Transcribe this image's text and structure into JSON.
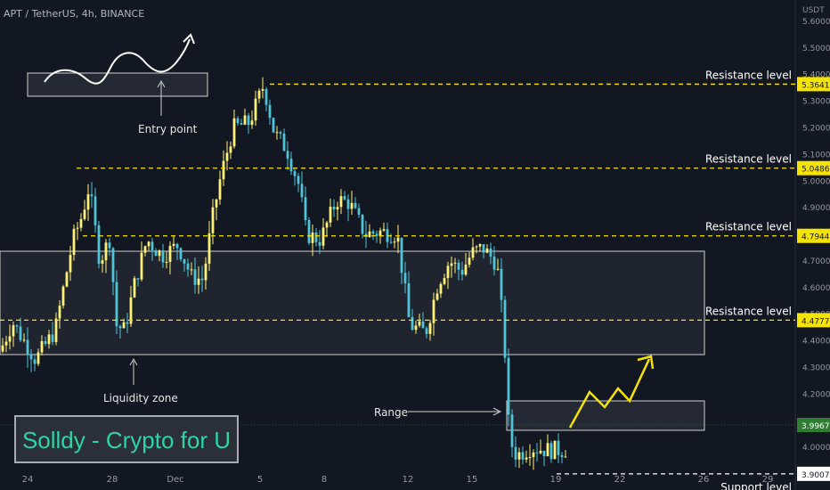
{
  "header": {
    "symbol_line": "APT / TetherUS, 4h, BINANCE"
  },
  "axis": {
    "currency": "USDT"
  },
  "watermark": "Solldy - Crypto for U",
  "annotations": {
    "entry_point": "Entry point",
    "liquidity_zone": "Liquidity zone",
    "range": "Range"
  },
  "colors": {
    "background": "#131722",
    "bull": "#fdf177",
    "bear": "#4fc3d7",
    "level_line": "#f5e300",
    "watermark": "#2dd4a6",
    "current_price_tag": "#2e7d32"
  },
  "chart_data": {
    "type": "candlestick",
    "x_tick_labels": [
      "24",
      "28",
      "Dec",
      "5",
      "8",
      "12",
      "15",
      "19",
      "22",
      "26",
      "29"
    ],
    "y_tick_labels": [
      "5.6000",
      "5.5000",
      "5.4000",
      "5.3000",
      "5.2000",
      "5.1000",
      "5.0000",
      "4.9000",
      "4.8000",
      "4.7000",
      "4.6000",
      "4.5000",
      "4.4000",
      "4.3000",
      "4.2000",
      "4.1000",
      "4.0000",
      "3.9000"
    ],
    "ylim": [
      3.84,
      5.68
    ],
    "levels": [
      {
        "label": "Resistance level",
        "price": "5.3641"
      },
      {
        "label": "Resistance level",
        "price": "5.0486"
      },
      {
        "label": "Resistance level",
        "price": "4.7944"
      },
      {
        "label": "Resistance level",
        "price": "4.4777"
      },
      {
        "label": "Support level",
        "price": "3.9007"
      }
    ],
    "current_price": "3.9967"
  }
}
